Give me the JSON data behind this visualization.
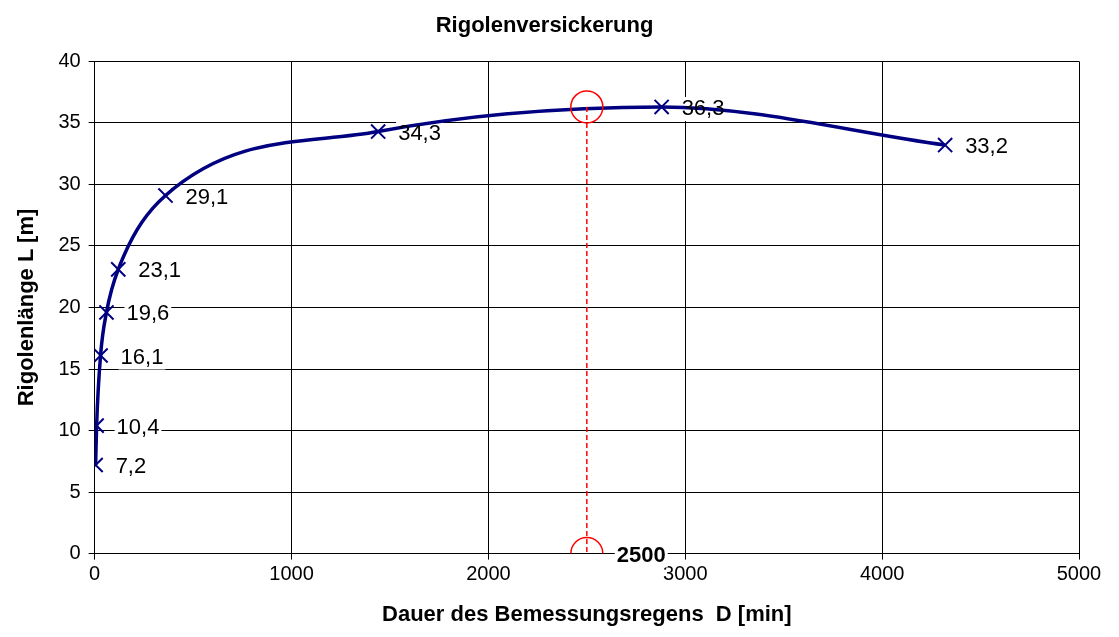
{
  "chart_data": {
    "type": "line",
    "title": "Rigolenversickerung",
    "xlabel": "Dauer des Bemessungsregens  D [min]",
    "ylabel": "Rigolenlänge L [m]",
    "x": [
      5,
      10,
      30,
      60,
      120,
      360,
      1440,
      2880,
      4320
    ],
    "series": [
      {
        "color": "#000080",
        "marker": "cross",
        "values": [
          7.2,
          10.4,
          16.1,
          19.6,
          23.1,
          29.1,
          34.3,
          36.3,
          33.2
        ],
        "value_labels": [
          "7,2",
          "10,4",
          "16,1",
          "19,6",
          "23,1",
          "29,1",
          "34,3",
          "36,3",
          "33,2"
        ]
      },
      {
        "color": "#ff0000",
        "marker": "circle",
        "line_style": "dashed",
        "x": [
          2500,
          2500
        ],
        "values": [
          36.3,
          0
        ]
      }
    ],
    "annotations": [
      {
        "text": "2500",
        "x": 2500,
        "y": 0
      }
    ],
    "xlim": [
      0,
      5000
    ],
    "xticks": [
      0,
      1000,
      2000,
      3000,
      4000,
      5000
    ],
    "ylim": [
      0,
      40
    ],
    "yticks": [
      0,
      5,
      10,
      15,
      20,
      25,
      30,
      35,
      40
    ],
    "grid": true,
    "legend": false
  }
}
